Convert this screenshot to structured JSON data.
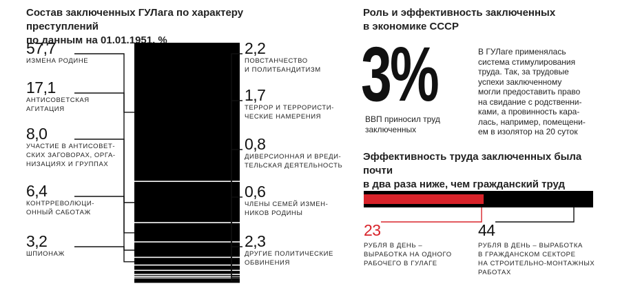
{
  "left_panel": {
    "title_line1": "Состав заключенных ГУЛага по характеру преступлений",
    "title_line2": "по данным на 01.01.1951, %"
  },
  "right_panel": {
    "title_line1": "Роль и эффективность заключенных",
    "title_line2": "в экономике СССР",
    "big_number": "3%",
    "gdp_line1": "ВВП приносил труд",
    "gdp_line2": "заключенных",
    "description": [
      "В ГУЛаге применялась",
      "система стимулирования",
      "труда. Так, за трудовые",
      "успехи заключенному",
      "могли предоставить право",
      "на свидание с родственни-",
      "ками, а провинность кара-",
      "лась, например, помещени-",
      "ем в изолятор на 20 суток"
    ],
    "efficiency_line1": "Эффективность труда заключенных была почти",
    "efficiency_line2": "в два раза ниже, чем гражданский труд",
    "gulag_value": "23",
    "gulag_label": [
      "рубля в день –",
      "выработка на одного",
      "рабочего в ГУЛаге"
    ],
    "civil_value": "44",
    "civil_label": [
      "рубля в день – выработка",
      "в гражданском секторе",
      "на строительно-монтажных",
      "работах"
    ]
  },
  "colors": {
    "bar": "#000000",
    "accent": "#d8232a",
    "text": "#1a1a1a"
  },
  "chart_data": [
    {
      "type": "bar",
      "stacked": true,
      "title": "Состав заключенных ГУЛага по характеру преступлений по данным на 01.01.1951, %",
      "categories": [
        "измена родине",
        "антисоветская агитация",
        "участие в антисоветских заговорах, организациях и группах",
        "контрреволюционный саботаж",
        "шпионаж",
        "повстанчество и политбандитизм",
        "террор и террористические намерения",
        "диверсионная и вредительская деятельность",
        "члены семей изменников родины",
        "другие политические обвинения"
      ],
      "values": [
        57.7,
        17.1,
        8.0,
        6.4,
        3.2,
        2.2,
        1.7,
        0.8,
        0.6,
        2.3
      ],
      "value_labels": [
        "57,7",
        "17,1",
        "8,0",
        "6,4",
        "3,2",
        "2,2",
        "1,7",
        "0,8",
        "0,6",
        "2,3"
      ],
      "label_lines": [
        [
          "измена родине"
        ],
        [
          "антисоветская",
          "агитация"
        ],
        [
          "участие в антисовет-",
          "ских заговорах, орга-",
          "низациях и группах"
        ],
        [
          "контрреволюци-",
          "онный саботаж"
        ],
        [
          "шпионаж"
        ],
        [
          "повстанчество",
          "и политбандитизм"
        ],
        [
          "террор и террористи-",
          "ческие намерения"
        ],
        [
          "диверсионная и вреди-",
          "тельская деятельность"
        ],
        [
          "члены семей измен-",
          "ников родины"
        ],
        [
          "другие политические",
          "обвинения"
        ]
      ],
      "label_side": [
        "left",
        "left",
        "left",
        "left",
        "left",
        "right",
        "right",
        "right",
        "right",
        "right"
      ]
    },
    {
      "type": "bar",
      "title": "Эффективность труда заключенных была почти в два раза ниже, чем гражданский труд",
      "categories": [
        "выработка на одного рабочего в ГУЛаге",
        "выработка в гражданском секторе на строительно-монтажных работах"
      ],
      "values": [
        23,
        44
      ],
      "unit": "рубля в день"
    }
  ]
}
